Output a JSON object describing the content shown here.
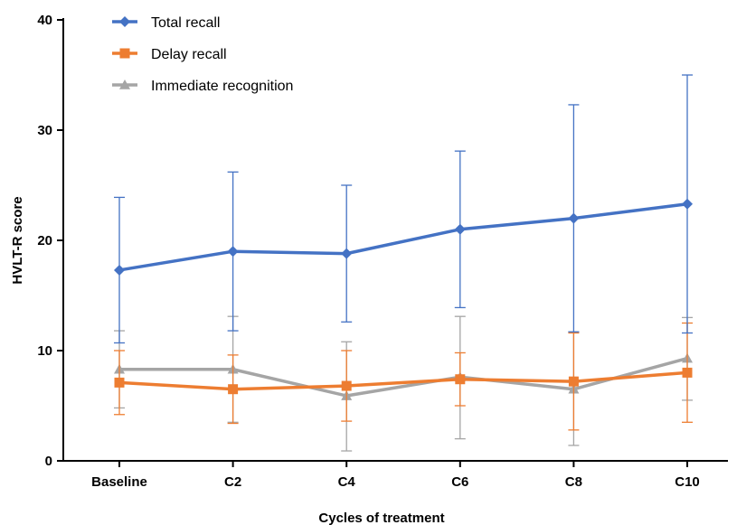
{
  "chart_data": {
    "type": "line",
    "title": "",
    "xlabel": "Cycles of treatment",
    "ylabel": "HVLT-R score",
    "categories": [
      "Baseline",
      "C2",
      "C4",
      "C6",
      "C8",
      "C10"
    ],
    "ylim": [
      0,
      40
    ],
    "yticks": [
      0,
      10,
      20,
      30,
      40
    ],
    "grid": false,
    "legend_position": "top-left",
    "series": [
      {
        "name": "Total recall",
        "color": "#4472C4",
        "marker": "diamond",
        "values": [
          17.3,
          19.0,
          18.8,
          21.0,
          22.0,
          23.3
        ],
        "err_low": [
          10.7,
          11.8,
          12.6,
          13.9,
          11.7,
          11.6
        ],
        "err_high": [
          23.9,
          26.2,
          25.0,
          28.1,
          32.3,
          35.0
        ]
      },
      {
        "name": "Delay recall",
        "color": "#ED7D31",
        "marker": "square",
        "values": [
          7.1,
          6.5,
          6.8,
          7.4,
          7.2,
          8.0
        ],
        "err_low": [
          4.2,
          3.4,
          3.6,
          5.0,
          2.8,
          3.5
        ],
        "err_high": [
          10.0,
          9.6,
          10.0,
          9.8,
          11.6,
          12.5
        ]
      },
      {
        "name": "Immediate recognition",
        "color": "#A5A5A5",
        "marker": "triangle",
        "values": [
          8.3,
          8.3,
          5.9,
          7.6,
          6.5,
          9.3
        ],
        "err_low": [
          4.8,
          3.5,
          0.9,
          2.0,
          1.4,
          5.5
        ],
        "err_high": [
          11.8,
          13.1,
          10.8,
          13.1,
          11.7,
          13.0
        ]
      }
    ]
  }
}
